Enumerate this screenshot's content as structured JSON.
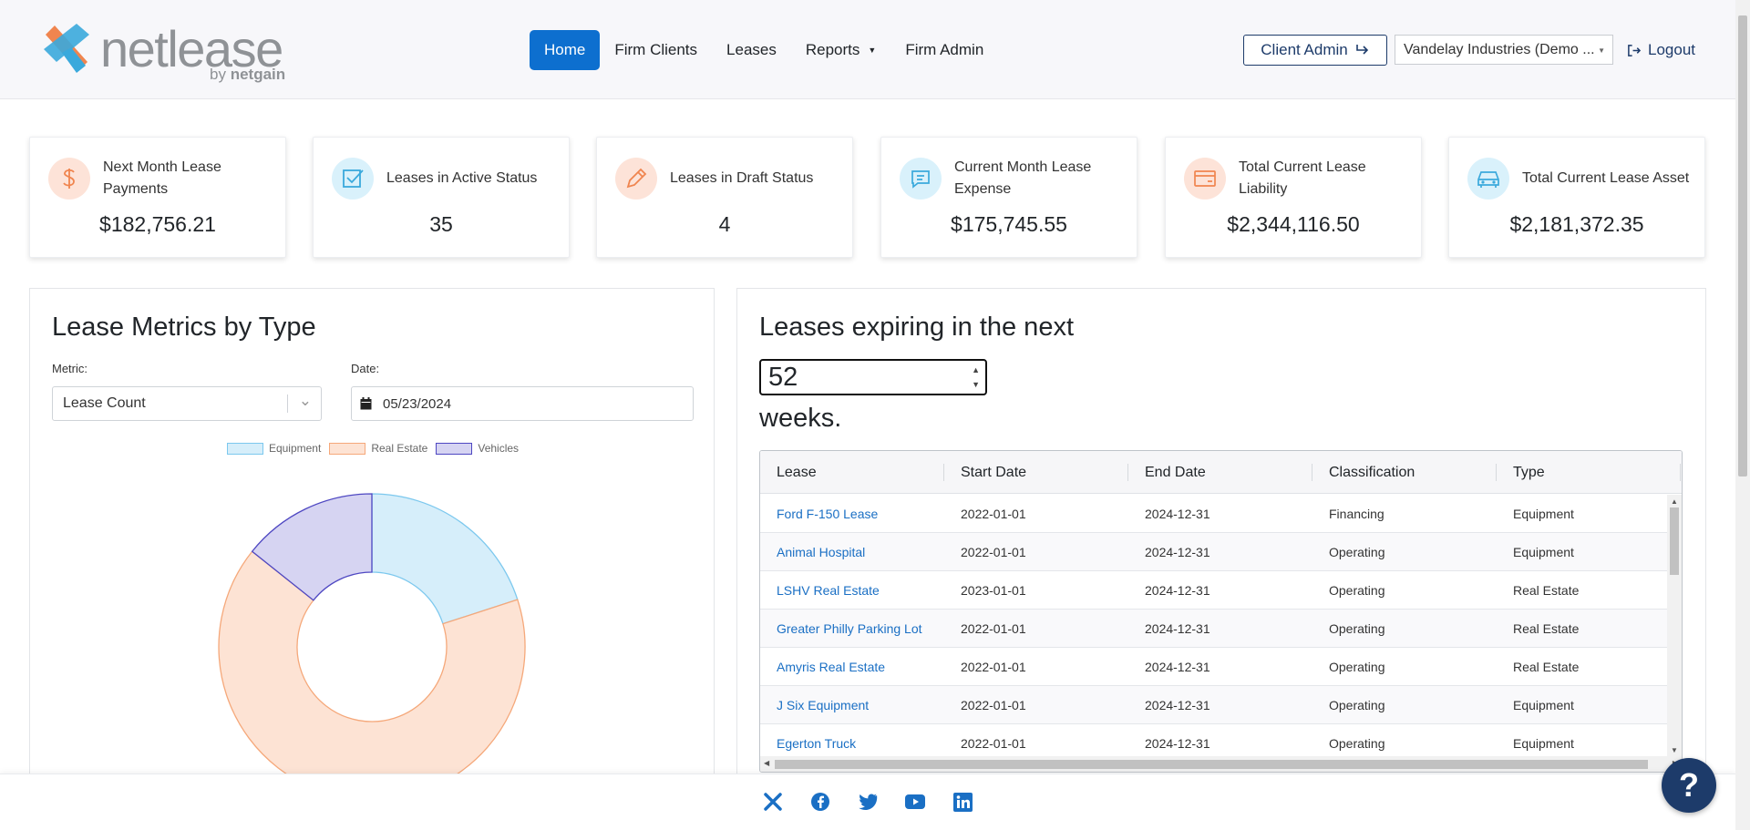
{
  "brand": {
    "name": "netlease",
    "by": "by",
    "by_brand": "netgain"
  },
  "nav": {
    "items": [
      {
        "label": "Home",
        "active": true
      },
      {
        "label": "Firm Clients"
      },
      {
        "label": "Leases"
      },
      {
        "label": "Reports",
        "has_dropdown": true
      },
      {
        "label": "Firm Admin"
      }
    ]
  },
  "header": {
    "client_admin_label": "Client Admin",
    "company_select_value": "Vandelay Industries (Demo ...",
    "logout_label": "Logout"
  },
  "stats": [
    {
      "label": "Next Month Lease Payments",
      "value": "$182,756.21",
      "icon": "dollar-icon",
      "tone": "orange"
    },
    {
      "label": "Leases in Active Status",
      "value": "35",
      "icon": "checkbox-icon",
      "tone": "blue"
    },
    {
      "label": "Leases in Draft Status",
      "value": "4",
      "icon": "pencil-icon",
      "tone": "orange"
    },
    {
      "label": "Current Month Lease Expense",
      "value": "$175,745.55",
      "icon": "receipt-icon",
      "tone": "blue"
    },
    {
      "label": "Total Current Lease Liability",
      "value": "$2,344,116.50",
      "icon": "credit-card-icon",
      "tone": "orange"
    },
    {
      "label": "Total Current Lease Asset",
      "value": "$2,181,372.35",
      "icon": "car-icon",
      "tone": "blue"
    }
  ],
  "metrics_panel": {
    "title": "Lease Metrics by Type",
    "metric_label": "Metric:",
    "metric_value": "Lease Count",
    "date_label": "Date:",
    "date_value": "05/23/2024"
  },
  "chart_data": {
    "type": "pie",
    "subtype": "doughnut",
    "categories": [
      "Equipment",
      "Real Estate",
      "Vehicles"
    ],
    "values": [
      7,
      23,
      5
    ],
    "colors": {
      "Equipment": {
        "fill": "#d6eefa",
        "stroke": "#7cc8ee"
      },
      "Real Estate": {
        "fill": "#fde3d4",
        "stroke": "#f5a87a"
      },
      "Vehicles": {
        "fill": "#d6d4f2",
        "stroke": "#4e47c2"
      }
    },
    "legend_position": "top"
  },
  "expiring_panel": {
    "title_before": "Leases expiring in the next",
    "weeks_value": "52",
    "title_after": "weeks.",
    "columns": [
      "Lease",
      "Start Date",
      "End Date",
      "Classification",
      "Type"
    ],
    "rows": [
      {
        "lease": "Ford F-150 Lease",
        "start": "2022-01-01",
        "end": "2024-12-31",
        "classification": "Financing",
        "type": "Equipment"
      },
      {
        "lease": "Animal Hospital",
        "start": "2022-01-01",
        "end": "2024-12-31",
        "classification": "Operating",
        "type": "Equipment"
      },
      {
        "lease": "LSHV Real Estate",
        "start": "2023-01-01",
        "end": "2024-12-31",
        "classification": "Operating",
        "type": "Real Estate"
      },
      {
        "lease": "Greater Philly Parking Lot",
        "start": "2022-01-01",
        "end": "2024-12-31",
        "classification": "Operating",
        "type": "Real Estate"
      },
      {
        "lease": "Amyris Real Estate",
        "start": "2022-01-01",
        "end": "2024-12-31",
        "classification": "Operating",
        "type": "Real Estate"
      },
      {
        "lease": "J Six Equipment",
        "start": "2022-01-01",
        "end": "2024-12-31",
        "classification": "Operating",
        "type": "Equipment"
      },
      {
        "lease": "Egerton Truck",
        "start": "2022-01-01",
        "end": "2024-12-31",
        "classification": "Operating",
        "type": "Equipment"
      }
    ]
  },
  "footer": {
    "social": [
      "netgain-icon",
      "facebook-icon",
      "twitter-icon",
      "youtube-icon",
      "linkedin-icon"
    ],
    "help_label": "?"
  },
  "theme": {
    "primary": "#0d6fcf",
    "navy": "#1d3b6a",
    "orange_accent": "#f0854f",
    "blue_accent": "#3aa9dc",
    "link": "#1a6fc4"
  }
}
